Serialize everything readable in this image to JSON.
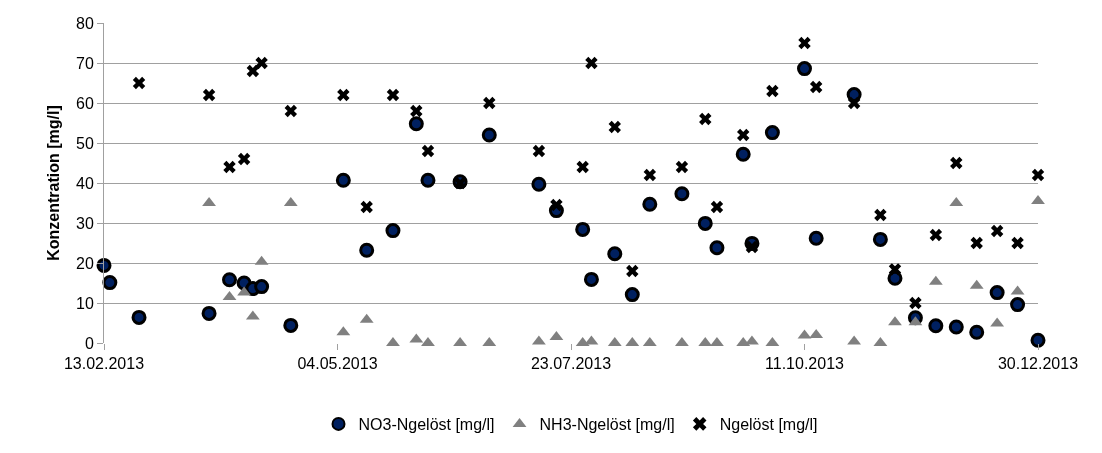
{
  "chart_data": {
    "type": "scatter",
    "ylabel": "Konzentration [mg/l]",
    "x": [
      "2013-02-13",
      "2013-02-15",
      "2013-02-25",
      "2013-03-21",
      "2013-03-28",
      "2013-04-02",
      "2013-04-05",
      "2013-04-08",
      "2013-04-18",
      "2013-05-06",
      "2013-05-14",
      "2013-05-23",
      "2013-05-31",
      "2013-06-04",
      "2013-06-15",
      "2013-06-25",
      "2013-07-12",
      "2013-07-18",
      "2013-07-27",
      "2013-07-30",
      "2013-08-07",
      "2013-08-13",
      "2013-08-19",
      "2013-08-30",
      "2013-09-07",
      "2013-09-11",
      "2013-09-20",
      "2013-09-23",
      "2013-09-30",
      "2013-10-11",
      "2013-10-15",
      "2013-10-28",
      "2013-11-06",
      "2013-11-11",
      "2013-11-18",
      "2013-11-25",
      "2013-12-02",
      "2013-12-09",
      "2013-12-16",
      "2013-12-23",
      "2013-12-30"
    ],
    "series": [
      {
        "name": "NO3-Ngelöst [mg/l]",
        "color": "#002060",
        "marker": "circle",
        "values": [
          19.4,
          15.1,
          6.4,
          7.4,
          15.8,
          15.0,
          13.6,
          14.1,
          4.4,
          40.7,
          23.2,
          28.1,
          54.8,
          40.7,
          40.3,
          52,
          39.7,
          33.1,
          28.4,
          15.9,
          22.3,
          12.1,
          34.7,
          37.3,
          29.9,
          23.8,
          47.2,
          24.9,
          52.6,
          68.6,
          26.2,
          62.1,
          25.9,
          16.2,
          6.3,
          4.3,
          4.0,
          2.7,
          12.6,
          9.6,
          0.7
        ]
      },
      {
        "name": "NH3-Ngelöst [mg/l]",
        "color": "#808080",
        "marker": "triangle",
        "values": [
          null,
          null,
          null,
          35,
          11.5,
          12.6,
          6.6,
          20.3,
          35,
          2.7,
          5.8,
          0,
          0.9,
          0,
          0,
          0,
          0.4,
          1.5,
          0,
          0.4,
          0,
          0,
          0,
          0,
          0,
          0,
          0,
          0.4,
          0,
          1.9,
          2,
          0.4,
          0,
          5.2,
          5.2,
          15.3,
          35,
          14.3,
          4.9,
          12.9,
          35.5
        ]
      },
      {
        "name": "Ngelöst [mg/l]",
        "color": "#000000",
        "marker": "cross",
        "values": [
          null,
          null,
          65,
          62,
          44,
          46,
          68,
          70,
          58,
          62,
          34,
          62,
          58,
          48,
          40,
          60,
          48,
          34.5,
          44,
          70,
          54,
          18,
          42,
          44,
          56,
          34,
          52,
          24,
          63,
          75,
          64,
          60,
          32,
          18.4,
          10,
          27,
          45,
          25,
          28,
          25,
          42
        ]
      }
    ],
    "xlim": [
      "2013-02-13",
      "2013-12-30"
    ],
    "xticks": [
      {
        "value": "2013-02-13",
        "label": "13.02.2013"
      },
      {
        "value": "2013-05-04",
        "label": "04.05.2013"
      },
      {
        "value": "2013-07-23",
        "label": "23.07.2013"
      },
      {
        "value": "2013-10-11",
        "label": "11.10.2013"
      },
      {
        "value": "2013-12-30",
        "label": "30.12.2013"
      }
    ],
    "ylim": [
      0,
      80
    ],
    "yticks": [
      0,
      10,
      20,
      30,
      40,
      50,
      60,
      70,
      80
    ],
    "grid": "y",
    "legend": "bottom"
  }
}
